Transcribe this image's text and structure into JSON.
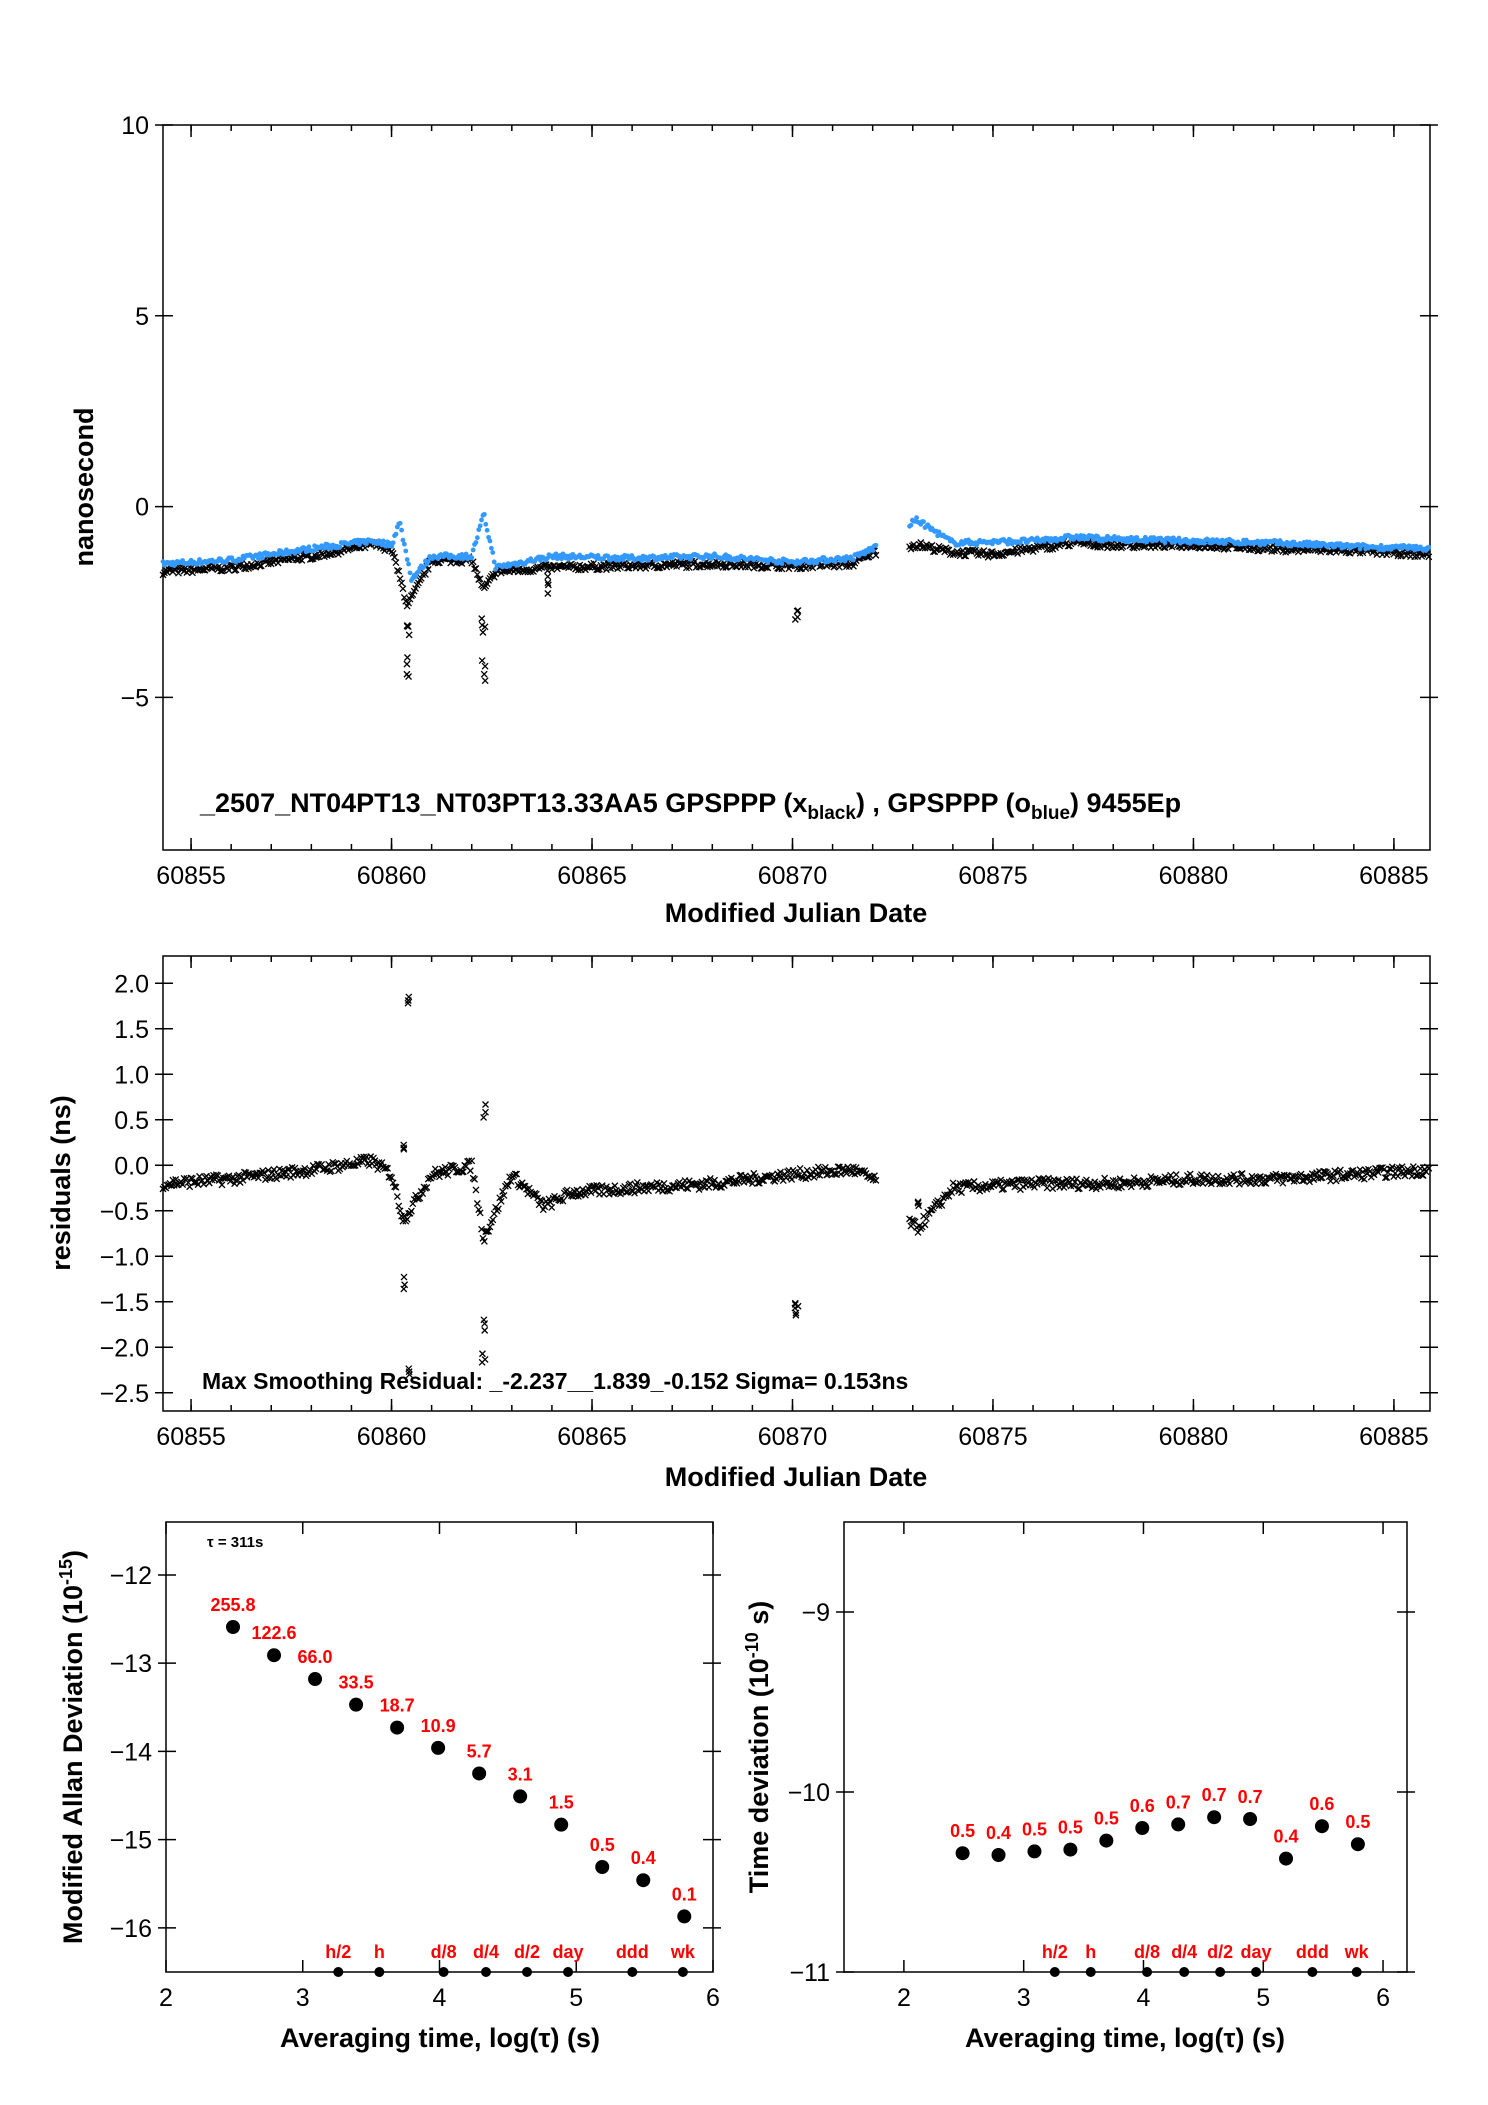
{
  "colors": {
    "black_series": "#000000",
    "blue_series": "#3399ff",
    "labels_red": "#ff0000"
  },
  "chart_data": [
    {
      "type": "scatter",
      "annotation": {
        "main": "_2507_NT04PT13_NT03PT13.33AA5     GPSPPP (x",
        "sub_black": "black",
        "mid": ") ,  GPSPPP (o",
        "sub_blue": "blue",
        "end": ")  9455Ep"
      },
      "xlabel": "Modified Julian Date",
      "ylabel": "nanosecond",
      "xlim": [
        60854.3,
        60885.9
      ],
      "ylim": [
        -9,
        10
      ],
      "xticks": [
        "60855",
        "60860",
        "60865",
        "60870",
        "60875",
        "60880",
        "60885"
      ],
      "yticks": [
        "10",
        "5",
        "0",
        "−5"
      ],
      "series": [
        {
          "marker": "x",
          "color": "#000000",
          "x": [
            60854.3,
            60856,
            60858,
            60859.5,
            60860,
            60860.4,
            60861,
            60862,
            60862.3,
            60862.6,
            60864,
            60866,
            60868,
            60870,
            60871.5,
            60872,
            60873.1,
            60874,
            60875,
            60876,
            60877,
            60878,
            60880,
            60882,
            60884,
            60885.9
          ],
          "y": [
            -1.7,
            -1.6,
            -1.3,
            -1.0,
            -1.1,
            -2.6,
            -1.4,
            -1.4,
            -2.2,
            -1.7,
            -1.6,
            -1.55,
            -1.5,
            -1.55,
            -1.5,
            -1.2,
            -1.0,
            -1.2,
            -1.25,
            -1.1,
            -0.95,
            -1.0,
            -1.0,
            -1.1,
            -1.15,
            -1.25
          ]
        },
        {
          "marker": "o",
          "color": "#3399ff",
          "x": [
            60854.3,
            60856,
            60858,
            60859.5,
            60860,
            60860.2,
            60860.5,
            60861,
            60862,
            60862.3,
            60862.6,
            60864,
            60866,
            60868,
            60870,
            60871.5,
            60872,
            60873.1,
            60874,
            60876,
            60877,
            60878,
            60880,
            60882,
            60884,
            60885.9
          ],
          "y": [
            -1.5,
            -1.4,
            -1.1,
            -0.9,
            -1.0,
            -0.4,
            -1.9,
            -1.3,
            -1.3,
            -0.2,
            -1.6,
            -1.3,
            -1.35,
            -1.3,
            -1.45,
            -1.35,
            -1.1,
            -0.35,
            -0.95,
            -0.9,
            -0.8,
            -0.85,
            -0.9,
            -0.95,
            -1.05,
            -1.1
          ]
        }
      ],
      "outliers": [
        [
          60860.4,
          -4.2
        ],
        [
          60860.4,
          -3.3
        ],
        [
          60862.3,
          -4.3
        ],
        [
          60862.3,
          -3.0
        ],
        [
          60870.1,
          -3.0
        ],
        [
          60863.9,
          -2.0
        ]
      ]
    },
    {
      "type": "scatter",
      "annotation": "Max Smoothing Residual: _-2.237__1.839_-0.152  Sigma= 0.153ns",
      "xlabel": "Modified Julian Date",
      "ylabel": "residuals (ns)",
      "xlim": [
        60854.3,
        60885.9
      ],
      "ylim": [
        -2.7,
        2.3
      ],
      "xticks": [
        "60855",
        "60860",
        "60865",
        "60870",
        "60875",
        "60880",
        "60885"
      ],
      "yticks": [
        "2.0",
        "1.5",
        "1.0",
        "0.5",
        "0.0",
        "−0.5",
        "−1.0",
        "−1.5",
        "−2.0",
        "−2.5"
      ],
      "series": [
        {
          "marker": "x",
          "color": "#000000",
          "x": [
            60854.3,
            60856,
            60858,
            60859.5,
            60860,
            60860.3,
            60861,
            60862,
            60862.3,
            60863,
            60863.8,
            60864.5,
            60866,
            60868,
            60870,
            60871.5,
            60872,
            60873.1,
            60874,
            60876,
            60878,
            60880,
            60882,
            60884,
            60885.9
          ],
          "y": [
            -0.2,
            -0.15,
            -0.05,
            0.05,
            -0.1,
            -0.6,
            -0.1,
            0.0,
            -0.8,
            -0.1,
            -0.45,
            -0.3,
            -0.25,
            -0.2,
            -0.1,
            -0.05,
            -0.15,
            -0.7,
            -0.25,
            -0.2,
            -0.2,
            -0.15,
            -0.15,
            -0.1,
            -0.05
          ]
        }
      ],
      "outliers": [
        [
          60860.4,
          1.839
        ],
        [
          60860.4,
          -2.237
        ],
        [
          60860.3,
          -1.3
        ],
        [
          60862.3,
          0.6
        ],
        [
          60862.3,
          -2.1
        ],
        [
          60862.3,
          -1.75
        ],
        [
          60870.1,
          -1.5
        ],
        [
          60870.1,
          -1.6
        ],
        [
          60873.1,
          -0.4
        ],
        [
          60860.3,
          0.25
        ]
      ]
    },
    {
      "type": "scatter",
      "tau_label": "τ = 311s",
      "xlabel": "Averaging time, log(τ) (s)",
      "ylabel": "Modified Allan Deviation (10",
      "ylabel_exp": "-15",
      "ylabel_end": ")",
      "xlim": [
        2,
        6
      ],
      "ylim": [
        -16.5,
        -11.4
      ],
      "xticks": [
        "2",
        "3",
        "4",
        "5",
        "6"
      ],
      "yticks": [
        "−12",
        "−13",
        "−14",
        "−15",
        "−16"
      ],
      "x": [
        2.49,
        2.79,
        3.09,
        3.39,
        3.69,
        3.99,
        4.29,
        4.59,
        4.89,
        5.19,
        5.49,
        5.79
      ],
      "y": [
        -12.59,
        -12.91,
        -13.18,
        -13.47,
        -13.73,
        -13.96,
        -14.25,
        -14.51,
        -14.83,
        -15.31,
        -15.46,
        -15.87
      ],
      "point_labels": [
        "255.8",
        "122.6",
        "66.0",
        "33.5",
        "18.7",
        "10.9",
        "5.7",
        "3.1",
        "1.5",
        "0.5",
        "0.4",
        "0.1"
      ],
      "markers": {
        "labels": [
          "h/2",
          "h",
          "d/8",
          "d/4",
          "d/2",
          "day",
          "ddd",
          "wk"
        ],
        "x": [
          3.26,
          3.56,
          4.03,
          4.34,
          4.64,
          4.94,
          5.41,
          5.78
        ]
      }
    },
    {
      "type": "scatter",
      "xlabel": "Averaging time, log(τ) (s)",
      "ylabel": "Time deviation (10",
      "ylabel_exp": "-10",
      "ylabel_end": " s)",
      "xlim": [
        1.5,
        6.2
      ],
      "ylim": [
        -11,
        -8.5
      ],
      "xticks": [
        "2",
        "3",
        "4",
        "5",
        "6"
      ],
      "yticks": [
        "−9",
        "−10",
        "−11"
      ],
      "x": [
        2.49,
        2.79,
        3.09,
        3.39,
        3.69,
        3.99,
        4.29,
        4.59,
        4.89,
        5.19,
        5.49,
        5.79
      ],
      "y": [
        -10.34,
        -10.35,
        -10.33,
        -10.32,
        -10.27,
        -10.2,
        -10.18,
        -10.14,
        -10.15,
        -10.37,
        -10.19,
        -10.29
      ],
      "point_labels": [
        "0.5",
        "0.4",
        "0.5",
        "0.5",
        "0.5",
        "0.6",
        "0.7",
        "0.7",
        "0.7",
        "0.4",
        "0.6",
        "0.5"
      ],
      "markers": {
        "labels": [
          "h/2",
          "h",
          "d/8",
          "d/4",
          "d/2",
          "day",
          "ddd",
          "wk"
        ],
        "x": [
          3.26,
          3.56,
          4.03,
          4.34,
          4.64,
          4.94,
          5.41,
          5.78
        ]
      }
    }
  ]
}
